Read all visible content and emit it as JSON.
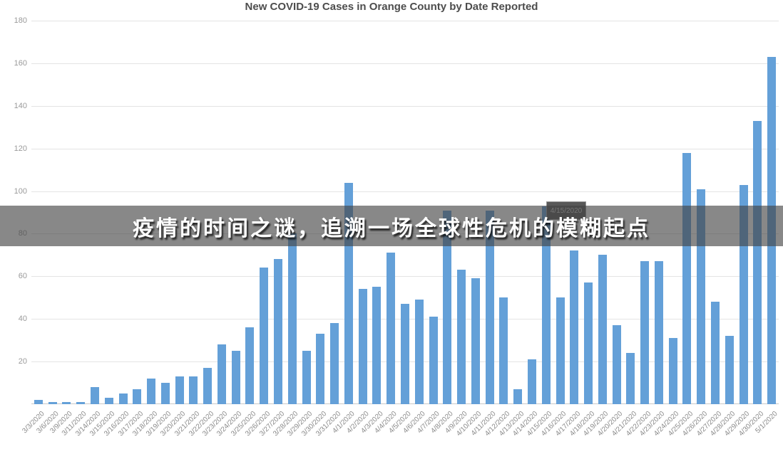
{
  "banner": {
    "text": "疫情的时间之谜，追溯一场全球性危机的模糊起点",
    "bg_color": "#424242",
    "text_color": "#ffffff"
  },
  "tooltip": {
    "text": "4/15/2020"
  },
  "chart_data": {
    "type": "bar",
    "title": "New COVID-19 Cases in Orange County by Date Reported",
    "xlabel": "",
    "ylabel": "",
    "ylim": [
      0,
      180
    ],
    "yticks": [
      20,
      40,
      60,
      80,
      100,
      120,
      140,
      160,
      180
    ],
    "grid": true,
    "legend": false,
    "bar_color": "#64a0d8",
    "categories": [
      "3/3/2020",
      "3/6/2020",
      "3/9/2020",
      "3/11/2020",
      "3/14/2020",
      "3/15/2020",
      "3/16/2020",
      "3/17/2020",
      "3/18/2020",
      "3/19/2020",
      "3/20/2020",
      "3/21/2020",
      "3/22/2020",
      "3/23/2020",
      "3/24/2020",
      "3/25/2020",
      "3/26/2020",
      "3/27/2020",
      "3/28/2020",
      "3/29/2020",
      "3/30/2020",
      "3/31/2020",
      "4/1/2020",
      "4/2/2020",
      "4/3/2020",
      "4/4/2020",
      "4/5/2020",
      "4/6/2020",
      "4/7/2020",
      "4/8/2020",
      "4/9/2020",
      "4/10/2020",
      "4/11/2020",
      "4/12/2020",
      "4/13/2020",
      "4/14/2020",
      "4/15/2020",
      "4/16/2020",
      "4/17/2020",
      "4/18/2020",
      "4/19/2020",
      "4/20/2020",
      "4/21/2020",
      "4/22/2020",
      "4/23/2020",
      "4/24/2020",
      "4/25/2020",
      "4/26/2020",
      "4/27/2020",
      "4/28/2020",
      "4/29/2020",
      "4/30/2020",
      "5/1/2020"
    ],
    "values": [
      2,
      1,
      1,
      1,
      8,
      3,
      5,
      7,
      12,
      10,
      13,
      13,
      17,
      28,
      25,
      36,
      64,
      68,
      80,
      25,
      33,
      38,
      104,
      54,
      55,
      71,
      47,
      49,
      41,
      91,
      63,
      59,
      91,
      50,
      7,
      21,
      93,
      50,
      72,
      57,
      70,
      37,
      24,
      67,
      67,
      31,
      118,
      101,
      48,
      32,
      103,
      133,
      163
    ]
  }
}
